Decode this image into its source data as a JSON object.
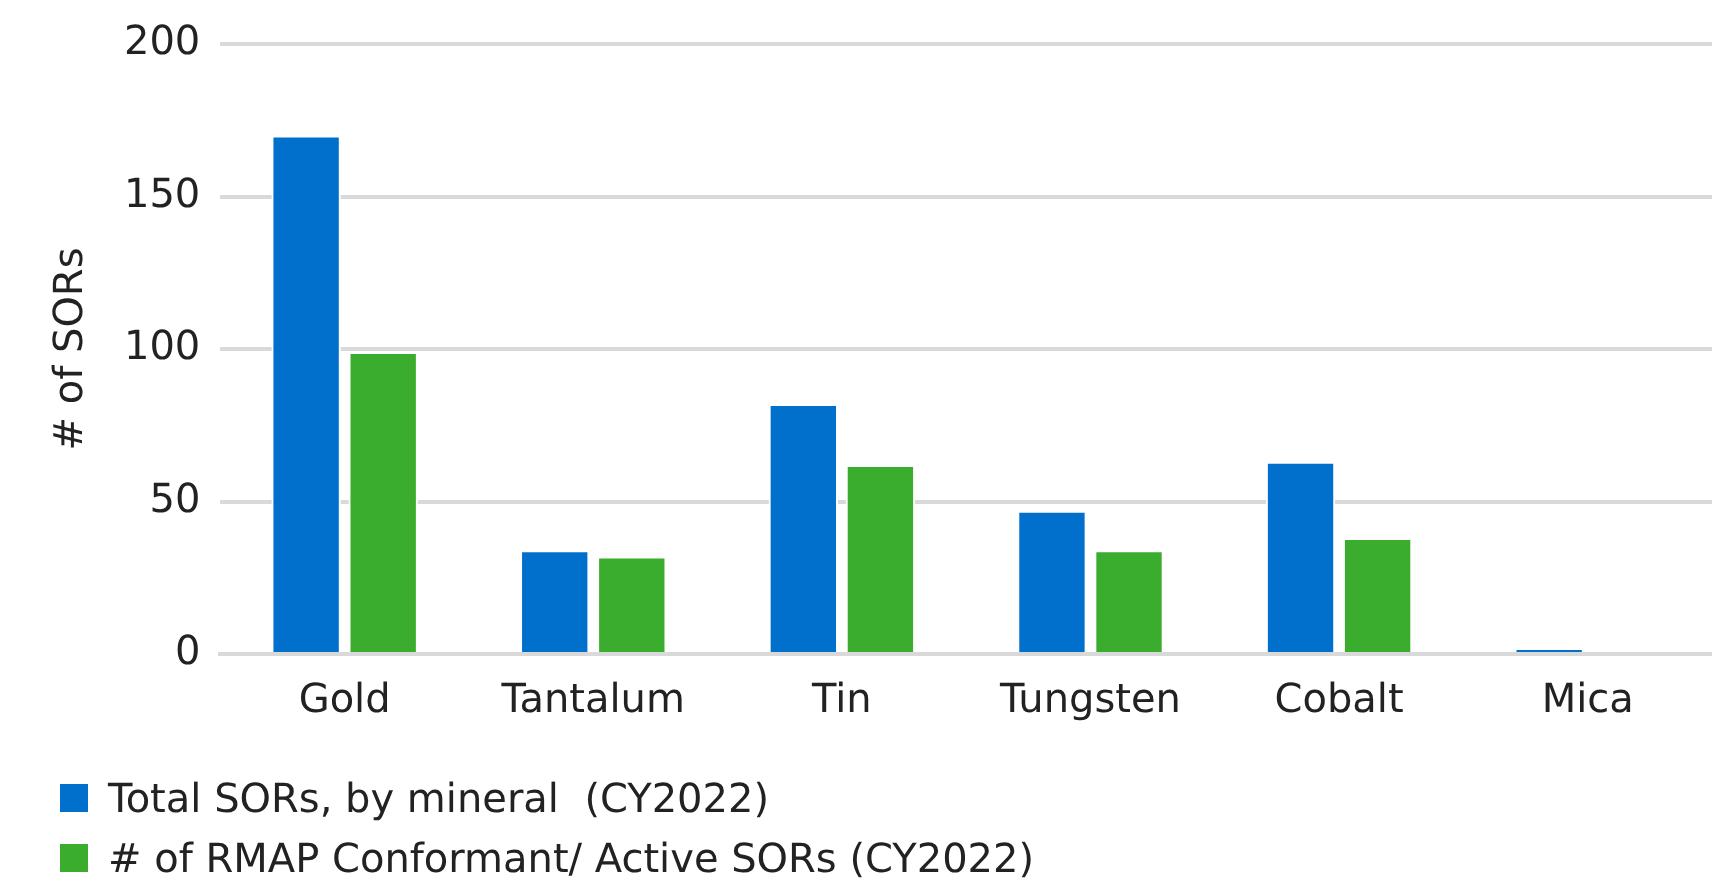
{
  "chart_data": {
    "type": "bar",
    "ylabel": "# of SORs",
    "categories": [
      "Gold",
      "Tantalum",
      "Tin",
      "Tungsten",
      "Cobalt",
      "Mica"
    ],
    "series": [
      {
        "name": "Total SORs, by mineral  (CY2022)",
        "color": "#0070cc",
        "values": [
          170,
          34,
          82,
          47,
          63,
          2
        ]
      },
      {
        "name": "# of RMAP Conformant/ Active SORs (CY2022)",
        "color": "#3aac2e",
        "values": [
          99,
          32,
          62,
          34,
          38,
          0
        ]
      }
    ],
    "ylim": [
      0,
      200
    ],
    "yticks": [
      0,
      50,
      100,
      150,
      200
    ],
    "grid": "y",
    "legend": "bottom"
  }
}
